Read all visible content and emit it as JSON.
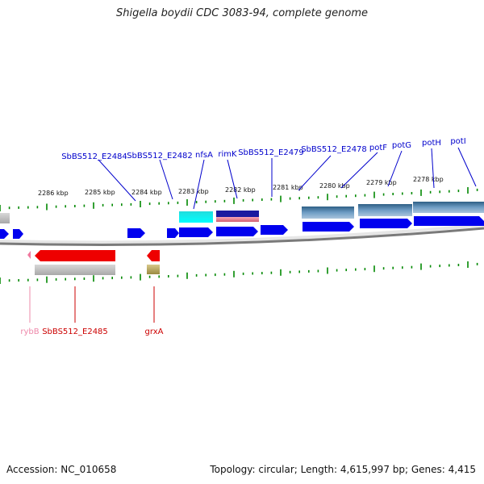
{
  "title": "Shigella boydii CDC 3083-94, complete genome",
  "footer": {
    "accession": "Accession: NC_010658",
    "topology": "Topology: circular; Length: 4,615,997 bp; Genes: 4,415"
  },
  "colors": {
    "label_forward": "#0000cc",
    "label_reverse": "#cc0000",
    "label_rna": "#ee88aa",
    "gene_blue": "#0000ee",
    "gene_red": "#ee0000",
    "tick_green": "#008800",
    "backbone": "#888888"
  },
  "scale_ticks": [
    "2286 kbp",
    "2285 kbp",
    "2284 kbp",
    "2283 kbp",
    "2282 kbp",
    "2281 kbp",
    "2280 kbp",
    "2279 kbp",
    "2278 kbp"
  ],
  "forward_genes": [
    "SbBS512_E2484",
    "SbBS512_E2482",
    "nfsA",
    "rimK",
    "SbBS512_E2479",
    "SbBS512_E2478",
    "potF",
    "potG",
    "potH",
    "potI"
  ],
  "reverse_genes": [
    "rybB",
    "SbBS512_E2485",
    "grxA"
  ]
}
